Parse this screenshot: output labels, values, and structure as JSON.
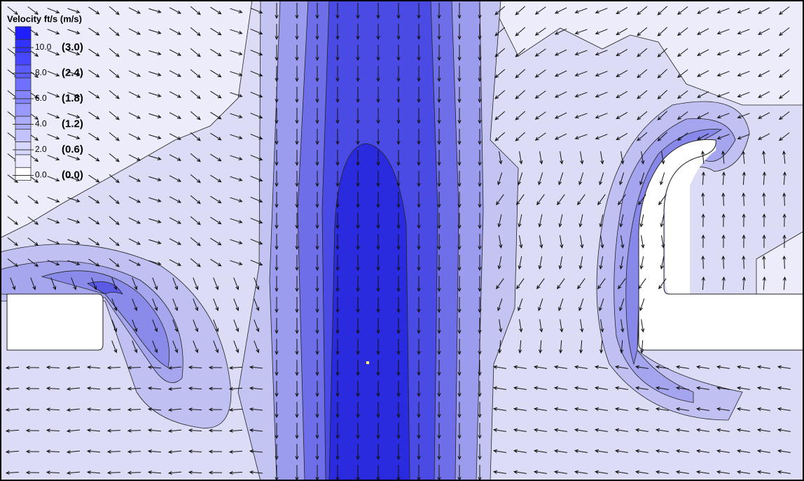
{
  "legend": {
    "title": "Velocity ft/s (m/s)",
    "items": [
      {
        "label": "10.0",
        "metric": "(3.0)"
      },
      {
        "label": "8.0",
        "metric": "(2.4)"
      },
      {
        "label": "6.0",
        "metric": "(1.8)"
      },
      {
        "label": "4.0",
        "metric": "(1.2)"
      },
      {
        "label": "2.0",
        "metric": "(0.6)"
      },
      {
        "label": "0.0",
        "metric": "(0.0)"
      }
    ]
  }
}
